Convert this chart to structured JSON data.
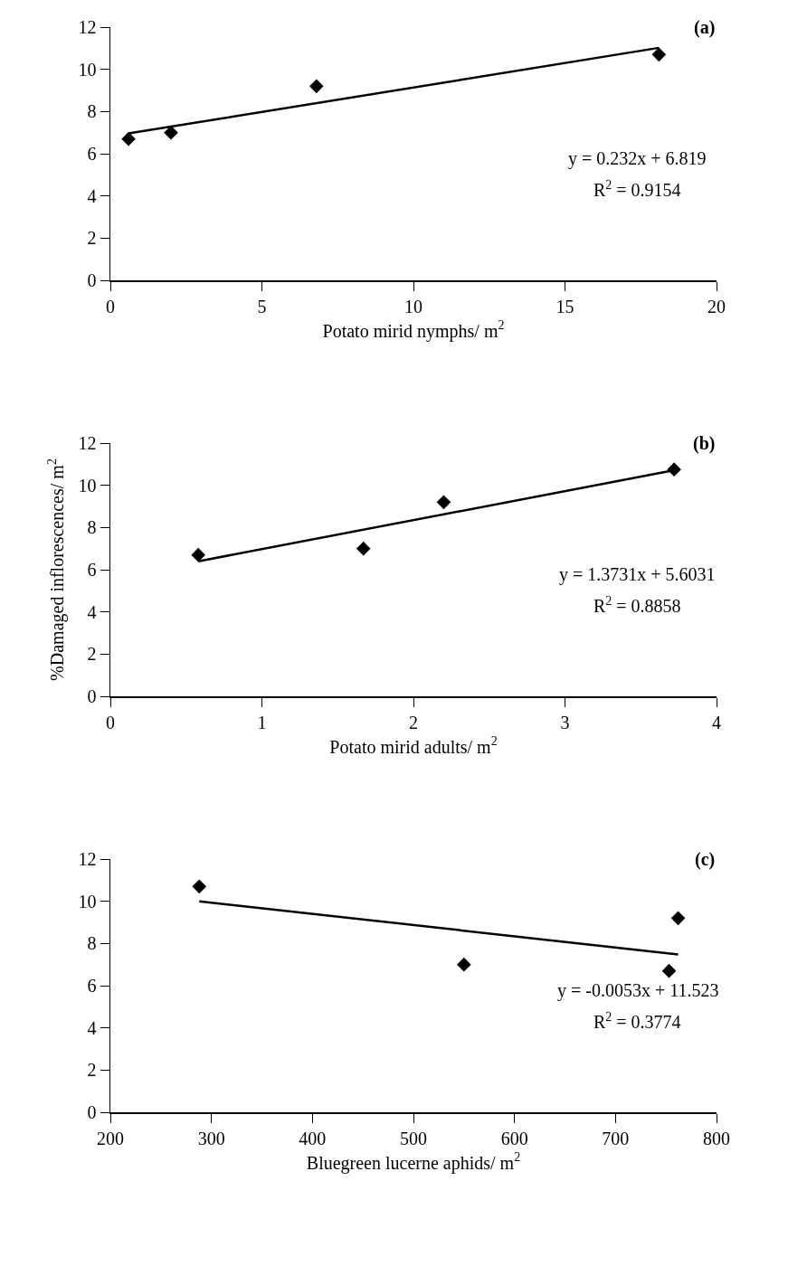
{
  "chart_data": [
    {
      "type": "scatter",
      "xlabel": "Potato mirid nymphs/ m$^{2}$",
      "annotations": [
        "(a)",
        "y = 0.232x + 6.819",
        "R$^{2}$ = 0.9154"
      ],
      "series": [
        {
          "color": "#000000",
          "marker": "diamond",
          "x": [
            0.6,
            2.0,
            6.8,
            18.1
          ],
          "values": [
            6.7,
            7.0,
            9.2,
            10.7
          ]
        },
        {
          "type": "line",
          "color": "#000000",
          "marker": "none",
          "x": [
            0.6,
            18.1
          ],
          "values": [
            6.96,
            11.02
          ]
        }
      ],
      "xlim": [
        0,
        20
      ],
      "xticks": [
        0,
        5,
        10,
        15,
        20
      ],
      "ylim": [
        0,
        12
      ],
      "yticks": [
        0,
        2,
        4,
        6,
        8,
        10,
        12
      ]
    },
    {
      "type": "scatter",
      "xlabel": "Potato mirid adults/ m$^{2}$",
      "ylabel": "%Damaged inflorescences/ m$^{2}$",
      "annotations": [
        "(b)",
        "y = 1.3731x + 5.6031",
        "R$^{2}$ = 0.8858"
      ],
      "series": [
        {
          "color": "#000000",
          "marker": "diamond",
          "x": [
            0.58,
            1.67,
            2.2,
            3.72
          ],
          "values": [
            6.7,
            7.0,
            9.2,
            10.75
          ]
        },
        {
          "type": "line",
          "color": "#000000",
          "marker": "none",
          "x": [
            0.58,
            3.72
          ],
          "values": [
            6.4,
            10.71
          ]
        }
      ],
      "xlim": [
        0,
        4
      ],
      "xticks": [
        0,
        1,
        2,
        3,
        4
      ],
      "ylim": [
        0,
        12
      ],
      "yticks": [
        0,
        2,
        4,
        6,
        8,
        10,
        12
      ]
    },
    {
      "type": "scatter",
      "xlabel": "Bluegreen lucerne aphids/ m$^{2}$",
      "annotations": [
        "(c)",
        "y = -0.0053x + 11.523",
        "R$^{2}$ = 0.3774"
      ],
      "series": [
        {
          "color": "#000000",
          "marker": "diamond",
          "x": [
            288,
            550,
            753,
            762
          ],
          "values": [
            10.7,
            7.0,
            6.7,
            9.2
          ]
        },
        {
          "type": "line",
          "color": "#000000",
          "marker": "none",
          "x": [
            288,
            762
          ],
          "values": [
            10.0,
            7.48
          ]
        }
      ],
      "xlim": [
        200,
        800
      ],
      "xticks": [
        200,
        300,
        400,
        500,
        600,
        700,
        800
      ],
      "ylim": [
        0,
        12
      ],
      "yticks": [
        0,
        2,
        4,
        6,
        8,
        10,
        12
      ]
    }
  ]
}
